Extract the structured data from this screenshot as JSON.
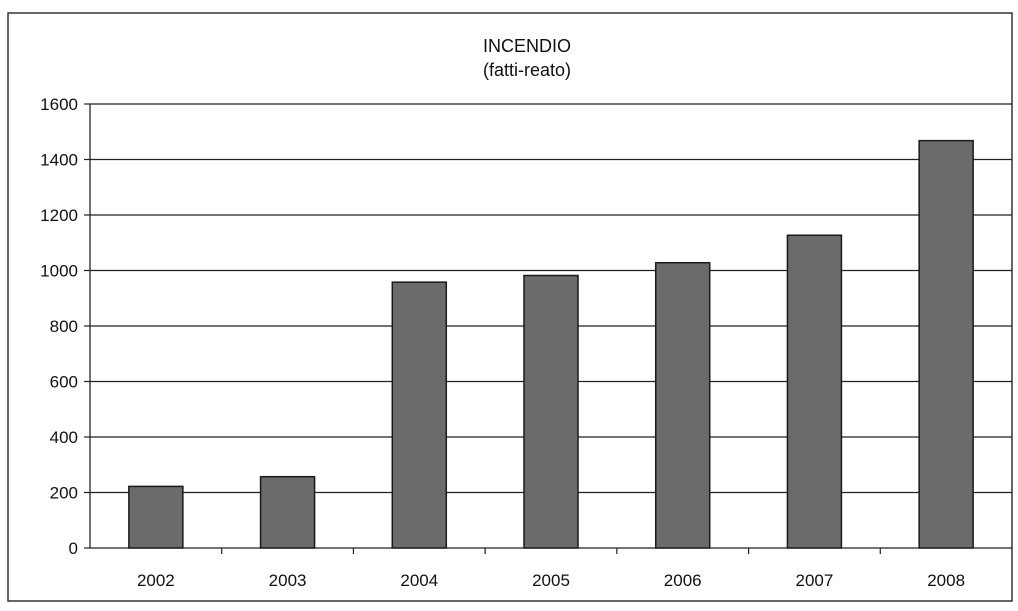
{
  "chart_data": {
    "type": "bar",
    "title": "INCENDIO",
    "subtitle": "(fatti-reato)",
    "xlabel": "",
    "ylabel": "",
    "categories": [
      "2002",
      "2003",
      "2004",
      "2005",
      "2006",
      "2007",
      "2008"
    ],
    "values": [
      222,
      257,
      958,
      982,
      1028,
      1127,
      1468
    ],
    "ylim": [
      0,
      1600
    ],
    "yticks": [
      0,
      200,
      400,
      600,
      800,
      1000,
      1200,
      1400,
      1600
    ],
    "grid": true,
    "legend": "none",
    "colors": {
      "bar": "#6b6b6b",
      "bar_stroke": "#1a1a1a",
      "grid": "#222222",
      "axis": "#222222",
      "frame": "#333333"
    }
  }
}
